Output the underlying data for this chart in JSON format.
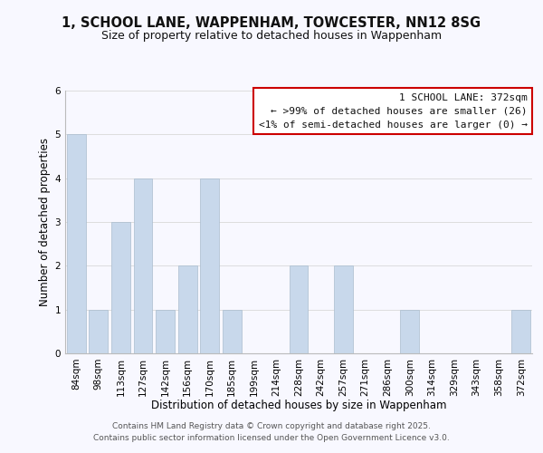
{
  "title_line1": "1, SCHOOL LANE, WAPPENHAM, TOWCESTER, NN12 8SG",
  "title_line2": "Size of property relative to detached houses in Wappenham",
  "xlabel": "Distribution of detached houses by size in Wappenham",
  "ylabel": "Number of detached properties",
  "categories": [
    "84sqm",
    "98sqm",
    "113sqm",
    "127sqm",
    "142sqm",
    "156sqm",
    "170sqm",
    "185sqm",
    "199sqm",
    "214sqm",
    "228sqm",
    "242sqm",
    "257sqm",
    "271sqm",
    "286sqm",
    "300sqm",
    "314sqm",
    "329sqm",
    "343sqm",
    "358sqm",
    "372sqm"
  ],
  "values": [
    5,
    1,
    3,
    4,
    1,
    2,
    4,
    1,
    0,
    0,
    2,
    0,
    2,
    0,
    0,
    1,
    0,
    0,
    0,
    0,
    1
  ],
  "bar_color": "#c8d8eb",
  "bar_edge_color": "#aabcce",
  "highlight_box_color": "#cc0000",
  "legend_title": "1 SCHOOL LANE: 372sqm",
  "legend_line1": "← >99% of detached houses are smaller (26)",
  "legend_line2": "<1% of semi-detached houses are larger (0) →",
  "ylim": [
    0,
    6
  ],
  "yticks": [
    0,
    1,
    2,
    3,
    4,
    5,
    6
  ],
  "grid_color": "#dddddd",
  "background_color": "#f8f8ff",
  "footer_line1": "Contains HM Land Registry data © Crown copyright and database right 2025.",
  "footer_line2": "Contains public sector information licensed under the Open Government Licence v3.0.",
  "title_fontsize": 10.5,
  "subtitle_fontsize": 9,
  "axis_label_fontsize": 8.5,
  "tick_fontsize": 7.5,
  "legend_fontsize": 8,
  "footer_fontsize": 6.5
}
